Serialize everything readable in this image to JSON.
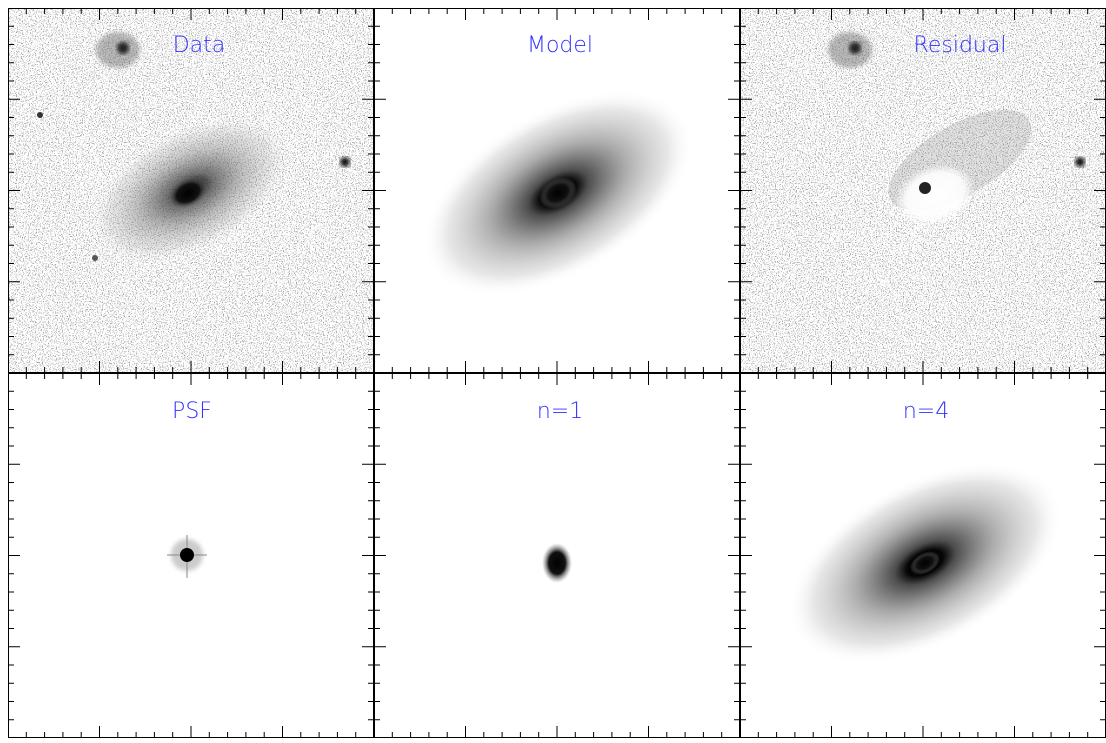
{
  "panels": [
    {
      "title": "Data"
    },
    {
      "title": "Model"
    },
    {
      "title": "Residual"
    },
    {
      "title": "PSF"
    },
    {
      "title": "n=1"
    },
    {
      "title": "n=4"
    }
  ]
}
